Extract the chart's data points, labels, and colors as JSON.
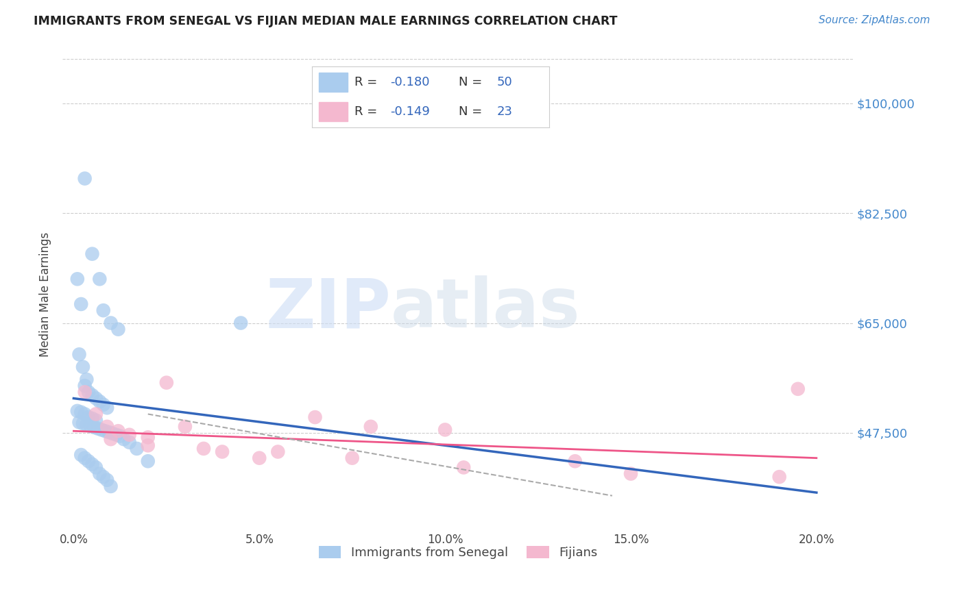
{
  "title": "IMMIGRANTS FROM SENEGAL VS FIJIAN MEDIAN MALE EARNINGS CORRELATION CHART",
  "source": "Source: ZipAtlas.com",
  "ylabel": "Median Male Earnings",
  "ytick_labels": [
    "$47,500",
    "$65,000",
    "$82,500",
    "$100,000"
  ],
  "ytick_vals": [
    47500,
    65000,
    82500,
    100000
  ],
  "ylim": [
    32000,
    107000
  ],
  "xlim": [
    -0.3,
    21.0
  ],
  "legend_entry1_r": "R = -0.180",
  "legend_entry1_n": "  N = 50",
  "legend_entry2_r": "R = -0.149",
  "legend_entry2_n": "  N = 23",
  "legend_label1": "Immigrants from Senegal",
  "legend_label2": "Fijians",
  "color_blue": "#aaccee",
  "color_pink": "#f4b8cf",
  "color_blue_line": "#3366bb",
  "color_pink_line": "#ee5588",
  "color_dashed": "#aaaaaa",
  "color_title": "#222222",
  "color_source": "#4488cc",
  "color_axis_right": "#4488cc",
  "color_legend_text": "#3366bb",
  "watermark_zip": "ZIP",
  "watermark_atlas": "atlas",
  "senegal_x": [
    0.3,
    0.5,
    0.7,
    0.8,
    1.0,
    1.2,
    0.1,
    0.2,
    0.15,
    0.25,
    0.35,
    0.3,
    0.4,
    0.5,
    0.6,
    0.7,
    0.8,
    0.9,
    0.1,
    0.2,
    0.3,
    0.4,
    0.5,
    0.6,
    0.15,
    0.25,
    0.35,
    0.45,
    0.55,
    0.65,
    0.75,
    0.85,
    0.95,
    1.05,
    1.15,
    1.25,
    1.35,
    1.5,
    1.7,
    2.0,
    0.2,
    0.3,
    0.4,
    0.5,
    0.6,
    0.7,
    0.8,
    0.9,
    1.0,
    4.5
  ],
  "senegal_y": [
    88000,
    76000,
    72000,
    67000,
    65000,
    64000,
    72000,
    68000,
    60000,
    58000,
    56000,
    55000,
    54000,
    53500,
    53000,
    52500,
    52000,
    51500,
    51000,
    50800,
    50500,
    50000,
    49800,
    49500,
    49200,
    49000,
    48800,
    48600,
    48400,
    48200,
    48000,
    47800,
    47600,
    47400,
    47200,
    47000,
    46500,
    46000,
    45000,
    43000,
    44000,
    43500,
    43000,
    42500,
    42000,
    41000,
    40500,
    40000,
    39000,
    65000
  ],
  "fijian_x": [
    0.3,
    0.6,
    0.9,
    1.2,
    1.5,
    2.0,
    2.5,
    3.0,
    4.0,
    5.0,
    6.5,
    8.0,
    10.0,
    13.5,
    19.5,
    1.0,
    2.0,
    3.5,
    5.5,
    7.5,
    10.5,
    15.0,
    19.0
  ],
  "fijian_y": [
    54000,
    50500,
    48500,
    47800,
    47200,
    46800,
    55500,
    48500,
    44500,
    43500,
    50000,
    48500,
    48000,
    43000,
    54500,
    46500,
    45500,
    45000,
    44500,
    43500,
    42000,
    41000,
    40500
  ],
  "blue_trend_x0": 0.0,
  "blue_trend_x1": 20.0,
  "blue_trend_y0": 53000,
  "blue_trend_y1": 38000,
  "pink_trend_x0": 0.0,
  "pink_trend_x1": 20.0,
  "pink_trend_y0": 47800,
  "pink_trend_y1": 43500,
  "dashed_x0": 2.0,
  "dashed_x1": 14.5,
  "dashed_y0": 50500,
  "dashed_y1": 37500
}
